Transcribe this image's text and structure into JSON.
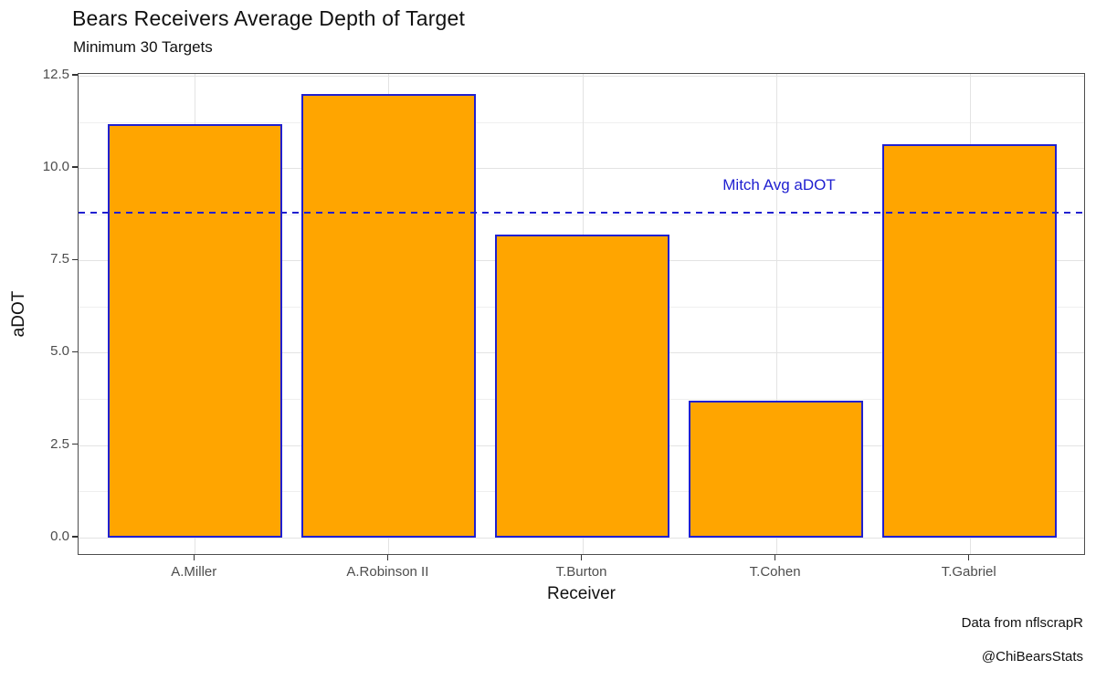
{
  "chart_data": {
    "type": "bar",
    "title": "Bears Receivers Average Depth of Target",
    "subtitle": "Minimum 30 Targets",
    "xlabel": "Receiver",
    "ylabel": "aDOT",
    "categories": [
      "A.Miller",
      "A.Robinson II",
      "T.Burton",
      "T.Cohen",
      "T.Gabriel"
    ],
    "values": [
      11.2,
      12.0,
      8.2,
      3.7,
      10.65
    ],
    "y_ticks": [
      0.0,
      2.5,
      5.0,
      7.5,
      10.0,
      12.5
    ],
    "y_tick_labels": [
      "0.0",
      "2.5",
      "5.0",
      "7.5",
      "10.0",
      "12.5"
    ],
    "y_minor_ticks": [
      1.25,
      3.75,
      6.25,
      8.75,
      11.25
    ],
    "ylim": [
      -0.5,
      12.55
    ],
    "grid": "on",
    "legend": "none",
    "reference_line": {
      "value": 8.8,
      "label": "Mitch Avg aDOT"
    },
    "colors": {
      "bar_fill": "#FFA500",
      "bar_border": "#2020D0",
      "reference_blue": "#2020D0",
      "grid_major": "#E3E3E3",
      "grid_minor": "#EFEFEF"
    },
    "caption_lines": [
      "Data from nflscrapR",
      "@ChiBearsStats"
    ]
  }
}
